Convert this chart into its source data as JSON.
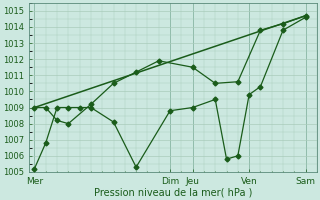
{
  "xlabel": "Pression niveau de la mer( hPa )",
  "ylim": [
    1005,
    1015.5
  ],
  "background_color": "#cce8e0",
  "grid_color": "#aaccbb",
  "line_color": "#1a5c1a",
  "day_labels": [
    "Mer",
    "Dim",
    "Jeu",
    "Ven",
    "Sam"
  ],
  "day_x": [
    0,
    12,
    14,
    19,
    24
  ],
  "xlim": [
    -0.5,
    25
  ],
  "trend_x": [
    0,
    24
  ],
  "trend_y": [
    1009.0,
    1014.7
  ],
  "s1_x": [
    0,
    1,
    2,
    3,
    5,
    7,
    9,
    11,
    14,
    16,
    18,
    20,
    22,
    24
  ],
  "s1_y": [
    1009.0,
    1009.0,
    1008.2,
    1008.0,
    1009.2,
    1010.5,
    1011.2,
    1011.9,
    1011.5,
    1010.5,
    1010.6,
    1013.8,
    1014.2,
    1014.7
  ],
  "s2_x": [
    0,
    1,
    2,
    3,
    4,
    5,
    7,
    9,
    12,
    14,
    16,
    17,
    18,
    19,
    20,
    22,
    24
  ],
  "s2_y": [
    1005.2,
    1006.8,
    1009.0,
    1009.0,
    1009.0,
    1009.0,
    1008.1,
    1005.3,
    1008.8,
    1009.0,
    1009.5,
    1005.8,
    1006.0,
    1009.8,
    1010.3,
    1013.8,
    1014.6
  ]
}
